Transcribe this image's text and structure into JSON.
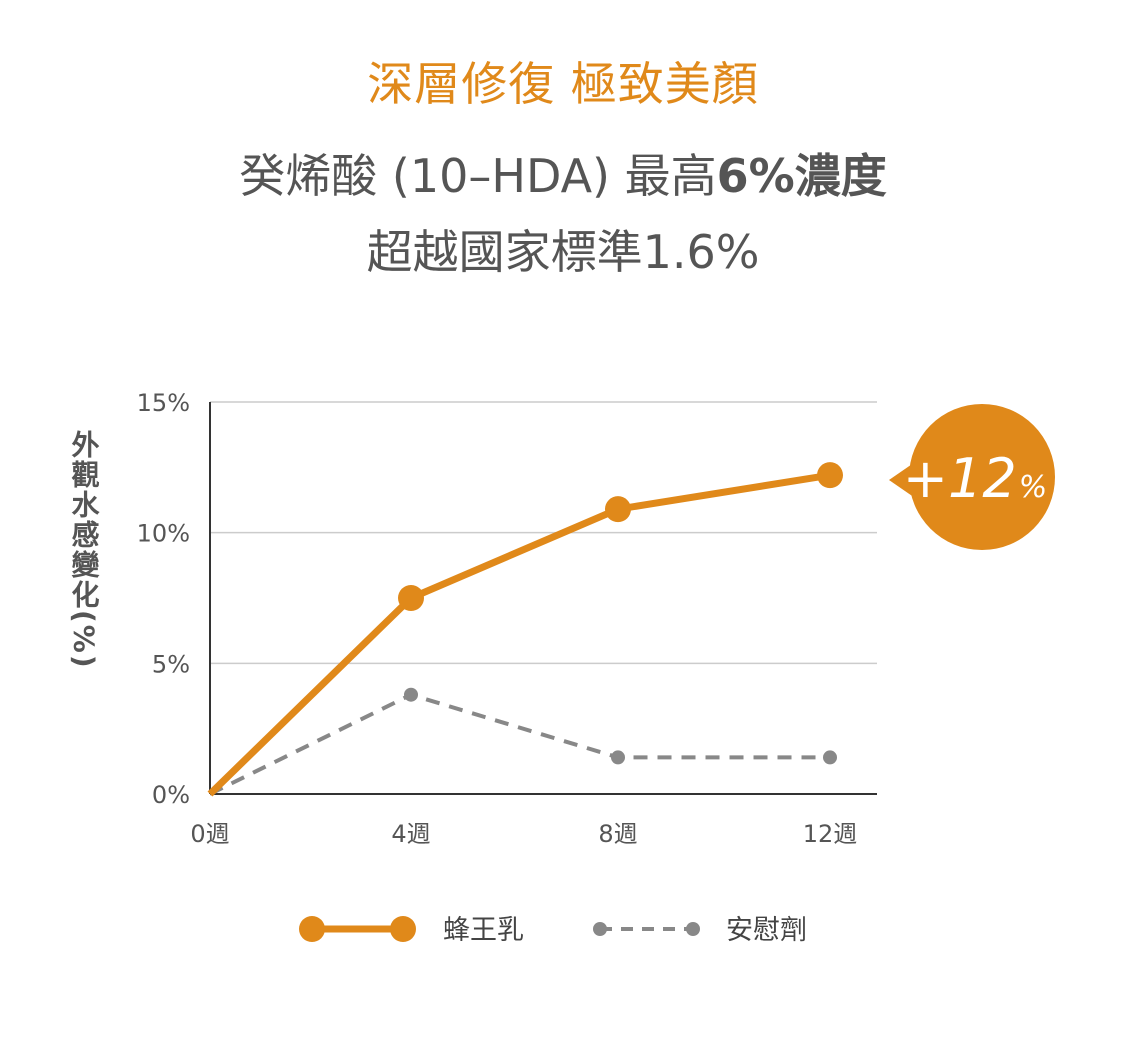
{
  "header": {
    "line1": "深層修復 極致美顏",
    "line2_prefix": "癸烯酸 (10–HDA) 最高",
    "line2_bold": "6%濃度",
    "line3": "超越國家標準1.6%"
  },
  "chart_data": {
    "type": "line",
    "ylabel": "外觀水感變化(%)",
    "x": [
      "0週",
      "4週",
      "8週",
      "12週"
    ],
    "yticks": [
      "0%",
      "5%",
      "10%",
      "15%"
    ],
    "ylim": [
      0,
      15
    ],
    "grid": true,
    "legend_position": "bottom",
    "series": [
      {
        "name": "蜂王乳",
        "values": [
          0,
          7.5,
          10.9,
          12.2
        ],
        "style": "solid",
        "color": "#E0891A"
      },
      {
        "name": "安慰劑",
        "values": [
          0,
          3.8,
          1.4,
          1.4
        ],
        "style": "dashed",
        "color": "#888888"
      }
    ],
    "annotation": {
      "number": "+12",
      "unit": "%",
      "color": "#E0891A"
    }
  }
}
